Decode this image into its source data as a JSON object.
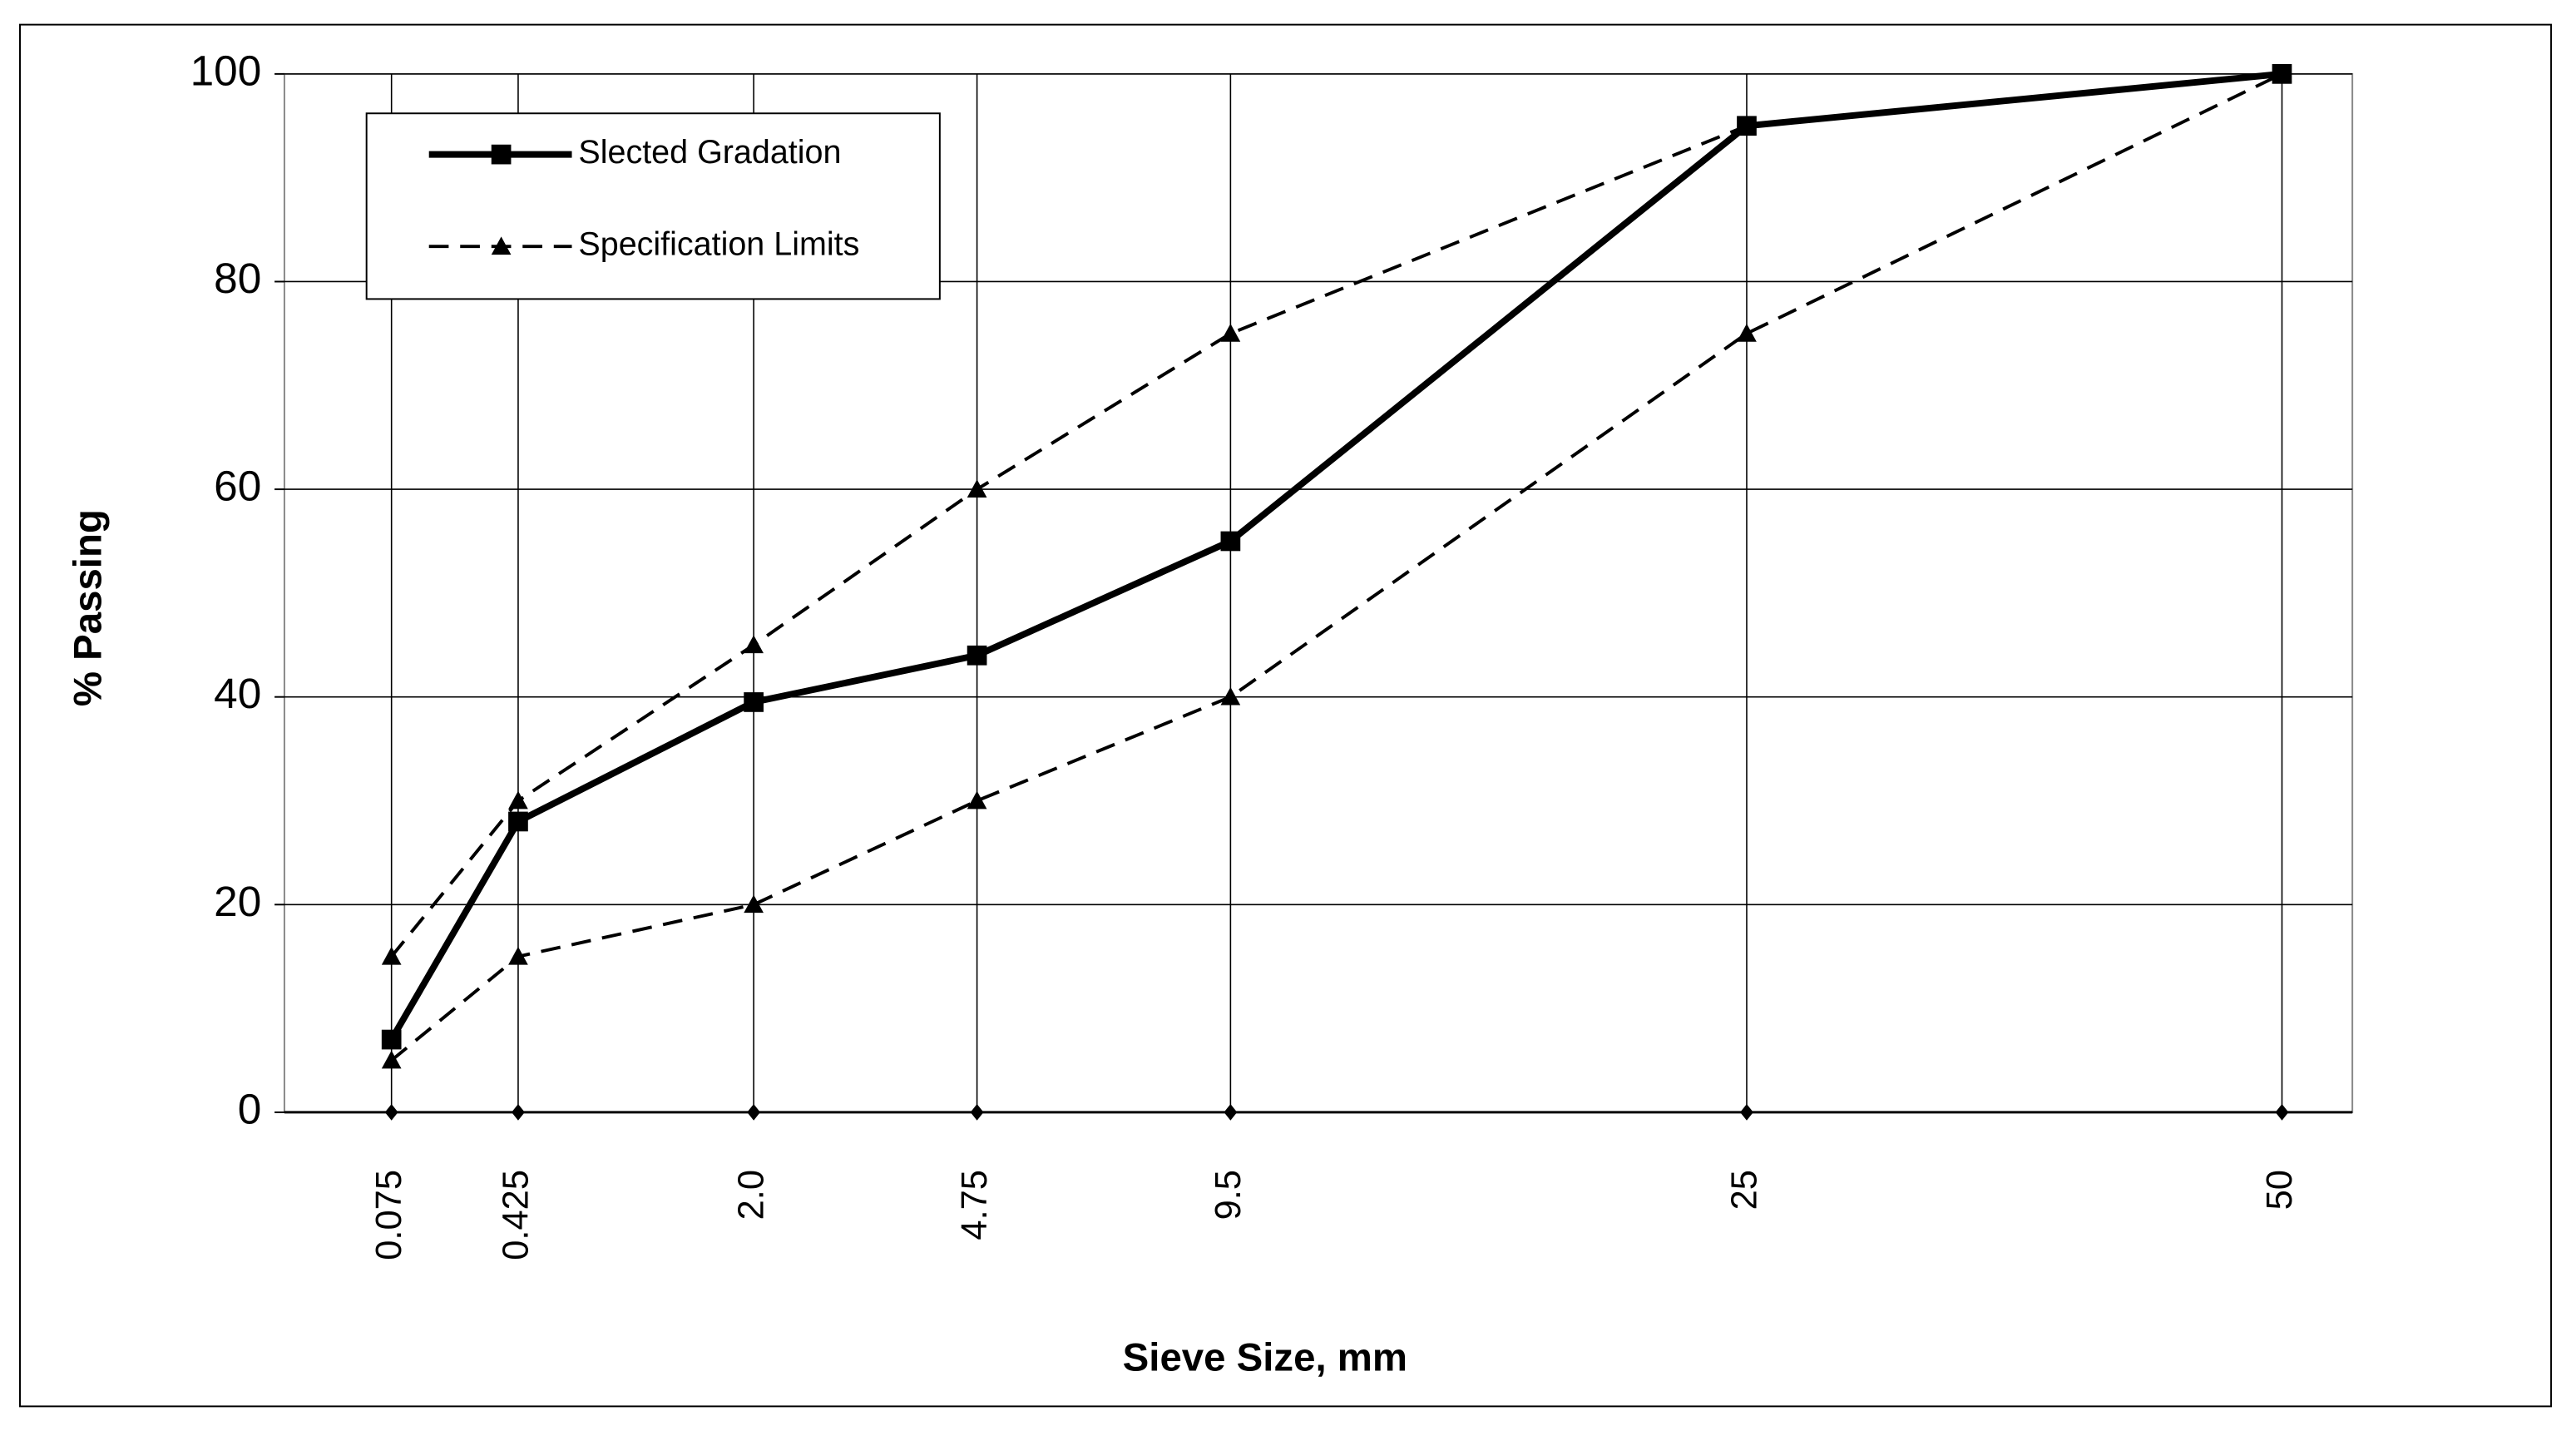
{
  "chart_data": {
    "type": "line",
    "y_label": "% Passing",
    "x_label": "Sieve Size, mm",
    "x": [
      0.075,
      0.425,
      2,
      4.75,
      9.5,
      25,
      50
    ],
    "x_scale_power": 0.45,
    "xlim": [
      0,
      54
    ],
    "xticks": [
      0.075,
      0.425,
      {
        "value": 2,
        "label": "2.0"
      },
      4.75,
      9.5,
      25,
      50
    ],
    "ylim": [
      0,
      100
    ],
    "yticks": [
      0,
      20,
      40,
      60,
      80,
      100
    ],
    "grid": true,
    "legend": "top-left",
    "series": [
      {
        "name": "Slected Gradation",
        "color": "#000000",
        "marker": "square",
        "dash": false,
        "values": [
          7,
          28,
          39.5,
          44,
          55,
          95,
          100
        ]
      },
      {
        "name": "Specification Limits",
        "color": "#000000",
        "marker": "triangle",
        "dash": true,
        "values": [
          15,
          30,
          45,
          60,
          75,
          95,
          100
        ]
      },
      {
        "color": "#000000",
        "marker": "triangle",
        "dash": true,
        "values": [
          5,
          15,
          20,
          30,
          40,
          75,
          100
        ]
      }
    ]
  }
}
